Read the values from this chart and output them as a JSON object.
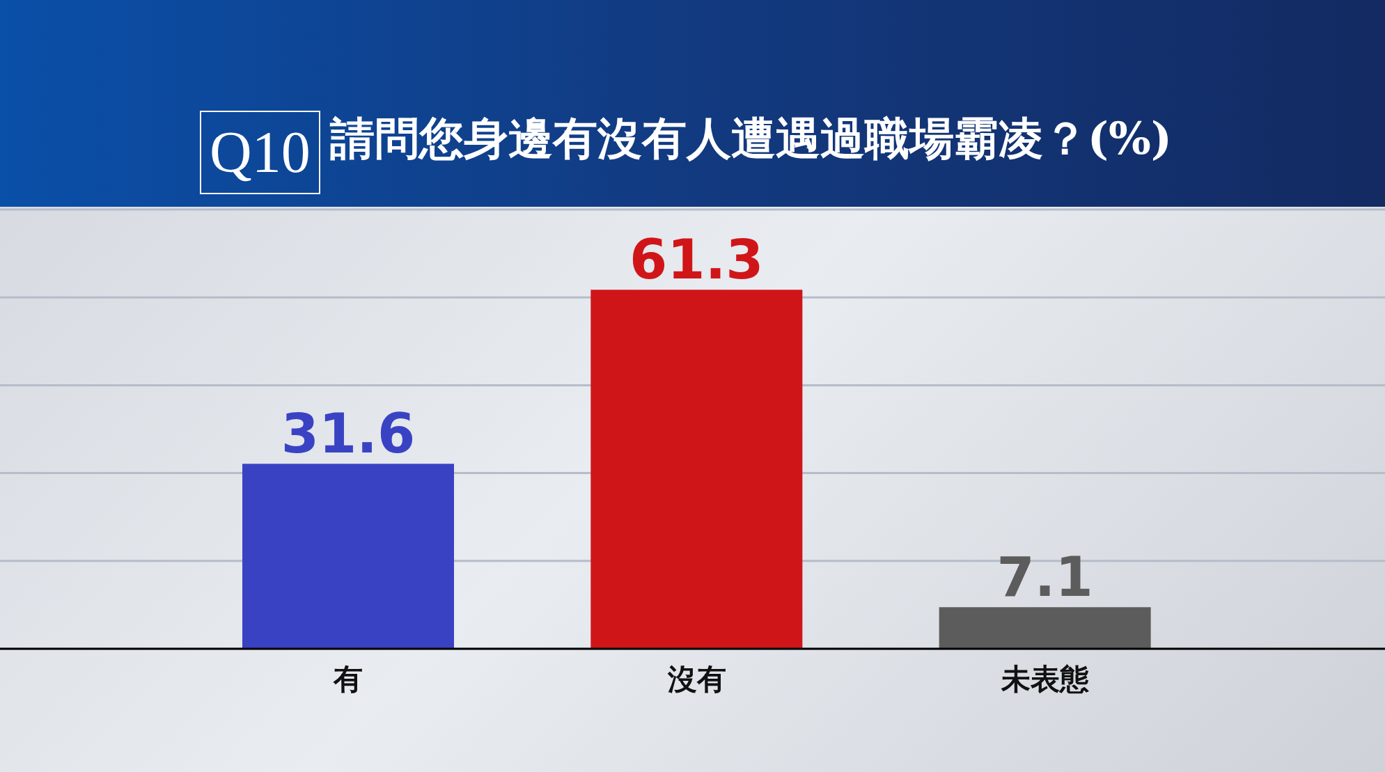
{
  "chart_data": {
    "type": "bar",
    "title": "請問您身邊有沒有人遭遇過職場霸凌？(%)",
    "annotations": [
      "Q10"
    ],
    "categories": [
      "有",
      "沒有",
      "未表態"
    ],
    "values": [
      31.6,
      61.3,
      7.1
    ],
    "colors": [
      "#3a42c4",
      "#d01519",
      "#5c5c5c"
    ],
    "grid": "y",
    "tick_labels": "x",
    "data_labels": true
  }
}
